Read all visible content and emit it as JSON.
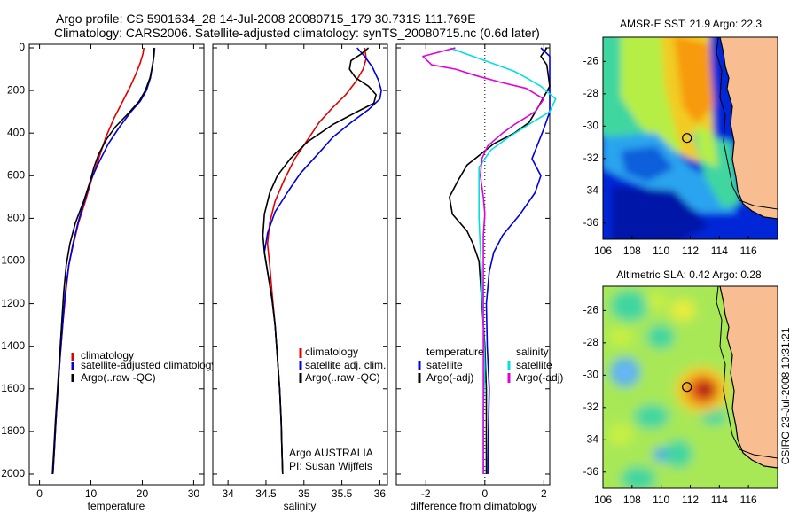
{
  "header": {
    "line1": "Argo profile: CS 5901634_28 14-Jul-2008 20080715_179 30.731S 111.769E",
    "line2": "Climatology: CARS2006. Satellite-adjusted climatology: synTS_20080715.nc (0.6d later)"
  },
  "chart_data": [
    {
      "type": "line",
      "xlabel": "temperature",
      "ylabel": "",
      "xlim": [
        -2,
        32
      ],
      "ylim": [
        2050,
        0
      ],
      "y_reversed": true,
      "xticks": [
        "0",
        "10",
        "20",
        "30"
      ],
      "yticks": [
        "0",
        "200",
        "400",
        "600",
        "800",
        "1000",
        "1200",
        "1400",
        "1600",
        "1800",
        "2000"
      ],
      "legend_labels": [
        "climatology",
        "satellite-adjusted climatology",
        "Argo(..raw -QC)"
      ],
      "series": [
        {
          "name": "climatology",
          "color": "#e00000",
          "points": [
            [
              20.3,
              0
            ],
            [
              20.1,
              30
            ],
            [
              19.6,
              70
            ],
            [
              18.8,
              120
            ],
            [
              17.7,
              180
            ],
            [
              16.2,
              250
            ],
            [
              14.5,
              330
            ],
            [
              12.9,
              420
            ],
            [
              11.5,
              520
            ],
            [
              10.1,
              620
            ],
            [
              8.9,
              720
            ],
            [
              7.6,
              820
            ],
            [
              6.6,
              920
            ],
            [
              5.7,
              1020
            ],
            [
              5.1,
              1150
            ],
            [
              4.5,
              1300
            ],
            [
              4.0,
              1450
            ],
            [
              3.6,
              1600
            ],
            [
              3.2,
              1750
            ],
            [
              2.9,
              1880
            ],
            [
              2.6,
              2000
            ]
          ]
        },
        {
          "name": "satellite-adjusted climatology",
          "color": "#0000e0",
          "points": [
            [
              22.4,
              0
            ],
            [
              22.3,
              30
            ],
            [
              22.0,
              80
            ],
            [
              21.6,
              140
            ],
            [
              20.8,
              200
            ],
            [
              19.6,
              250
            ],
            [
              17.8,
              300
            ],
            [
              15.6,
              370
            ],
            [
              13.4,
              450
            ],
            [
              11.5,
              540
            ],
            [
              10.0,
              620
            ],
            [
              8.7,
              720
            ],
            [
              7.5,
              820
            ],
            [
              6.5,
              920
            ],
            [
              5.7,
              1020
            ],
            [
              5.0,
              1150
            ],
            [
              4.5,
              1300
            ],
            [
              4.0,
              1450
            ],
            [
              3.6,
              1600
            ],
            [
              3.2,
              1750
            ],
            [
              2.9,
              1880
            ],
            [
              2.6,
              2000
            ]
          ]
        },
        {
          "name": "Argo(..raw -QC)",
          "color": "#000000",
          "points": [
            [
              22.2,
              0
            ],
            [
              22.3,
              30
            ],
            [
              22.0,
              80
            ],
            [
              21.5,
              140
            ],
            [
              20.6,
              200
            ],
            [
              19.4,
              250
            ],
            [
              17.2,
              310
            ],
            [
              14.8,
              370
            ],
            [
              13.0,
              430
            ],
            [
              11.5,
              500
            ],
            [
              10.6,
              560
            ],
            [
              9.8,
              630
            ],
            [
              8.6,
              720
            ],
            [
              7.0,
              820
            ],
            [
              5.9,
              920
            ],
            [
              5.2,
              1020
            ],
            [
              4.7,
              1150
            ],
            [
              4.3,
              1300
            ],
            [
              3.9,
              1450
            ],
            [
              3.5,
              1600
            ],
            [
              3.1,
              1750
            ],
            [
              2.8,
              1880
            ],
            [
              2.5,
              2000
            ]
          ]
        }
      ]
    },
    {
      "type": "line",
      "xlabel": "salinity",
      "ylabel": "",
      "xlim": [
        33.8,
        36.1
      ],
      "ylim": [
        2050,
        0
      ],
      "y_reversed": true,
      "xticks": [
        "34",
        "34.5",
        "35",
        "35.5",
        "36"
      ],
      "legend_labels": [
        "climatology",
        "satellite adj. clim.",
        "Argo(..raw -QC)"
      ],
      "annotations": [
        "Argo AUSTRALIA",
        "PI: Susan Wijffels"
      ],
      "series": [
        {
          "name": "climatology",
          "color": "#e00000",
          "points": [
            [
              35.8,
              0
            ],
            [
              35.82,
              50
            ],
            [
              35.78,
              100
            ],
            [
              35.68,
              160
            ],
            [
              35.55,
              220
            ],
            [
              35.38,
              280
            ],
            [
              35.2,
              350
            ],
            [
              35.05,
              430
            ],
            [
              34.88,
              520
            ],
            [
              34.74,
              620
            ],
            [
              34.62,
              720
            ],
            [
              34.55,
              820
            ],
            [
              34.52,
              920
            ],
            [
              34.55,
              1020
            ],
            [
              34.58,
              1150
            ],
            [
              34.62,
              1300
            ],
            [
              34.65,
              1450
            ],
            [
              34.68,
              1600
            ],
            [
              34.7,
              1750
            ],
            [
              34.71,
              1880
            ],
            [
              34.72,
              2000
            ]
          ]
        },
        {
          "name": "satellite adj. clim.",
          "color": "#0000e0",
          "points": [
            [
              35.7,
              0
            ],
            [
              35.8,
              40
            ],
            [
              35.9,
              90
            ],
            [
              35.98,
              150
            ],
            [
              36.02,
              200
            ],
            [
              36.0,
              240
            ],
            [
              35.85,
              290
            ],
            [
              35.62,
              350
            ],
            [
              35.38,
              420
            ],
            [
              35.18,
              500
            ],
            [
              34.95,
              590
            ],
            [
              34.78,
              680
            ],
            [
              34.62,
              770
            ],
            [
              34.52,
              870
            ],
            [
              34.48,
              960
            ],
            [
              34.52,
              1050
            ],
            [
              34.58,
              1180
            ],
            [
              34.62,
              1300
            ],
            [
              34.65,
              1450
            ],
            [
              34.68,
              1600
            ],
            [
              34.7,
              1750
            ],
            [
              34.71,
              1880
            ],
            [
              34.72,
              2000
            ]
          ]
        },
        {
          "name": "Argo(..raw -QC)",
          "color": "#000000",
          "points": [
            [
              35.85,
              0
            ],
            [
              35.75,
              30
            ],
            [
              35.62,
              60
            ],
            [
              35.6,
              100
            ],
            [
              35.68,
              140
            ],
            [
              35.85,
              180
            ],
            [
              35.95,
              220
            ],
            [
              35.92,
              260
            ],
            [
              35.7,
              300
            ],
            [
              35.38,
              360
            ],
            [
              35.05,
              440
            ],
            [
              34.82,
              520
            ],
            [
              34.65,
              600
            ],
            [
              34.55,
              680
            ],
            [
              34.48,
              780
            ],
            [
              34.46,
              880
            ],
            [
              34.48,
              960
            ],
            [
              34.52,
              1050
            ],
            [
              34.58,
              1180
            ],
            [
              34.62,
              1300
            ],
            [
              34.65,
              1450
            ],
            [
              34.68,
              1600
            ],
            [
              34.7,
              1750
            ],
            [
              34.71,
              1880
            ],
            [
              34.72,
              2000
            ]
          ]
        }
      ]
    },
    {
      "type": "line",
      "xlabel": "difference from climatology",
      "ylabel": "",
      "xlim": [
        -3.0,
        2.2
      ],
      "ylim": [
        2050,
        0
      ],
      "y_reversed": true,
      "xticks": [
        "-2",
        "0",
        "2"
      ],
      "zero_line": "dotted",
      "legend_labels": [
        "temperature",
        "satellite",
        "Argo(-adj)",
        "salinity",
        "satellite",
        "Argo(-adj)"
      ],
      "series": [
        {
          "name": "satellite",
          "color": "#0000e0",
          "points": [
            [
              1.9,
              0
            ],
            [
              2.2,
              40
            ],
            [
              2.2,
              300
            ],
            [
              2.0,
              380
            ],
            [
              1.8,
              450
            ],
            [
              1.6,
              520
            ],
            [
              1.9,
              600
            ],
            [
              1.7,
              680
            ],
            [
              1.2,
              780
            ],
            [
              0.6,
              880
            ],
            [
              0.3,
              960
            ],
            [
              0.15,
              1050
            ],
            [
              0.05,
              1200
            ],
            [
              0.08,
              1400
            ],
            [
              0.15,
              1600
            ],
            [
              0.12,
              1800
            ],
            [
              0.1,
              2000
            ]
          ]
        },
        {
          "name": "Argo(-adj)",
          "color": "#000000",
          "points": [
            [
              2.1,
              0
            ],
            [
              1.9,
              40
            ],
            [
              2.1,
              80
            ],
            [
              2.2,
              180
            ],
            [
              1.8,
              280
            ],
            [
              1.5,
              350
            ],
            [
              1.0,
              400
            ],
            [
              0.3,
              450
            ],
            [
              -0.6,
              550
            ],
            [
              -0.9,
              620
            ],
            [
              -1.2,
              700
            ],
            [
              -1.1,
              780
            ],
            [
              -0.6,
              860
            ],
            [
              -0.4,
              920
            ],
            [
              -0.2,
              1000
            ],
            [
              -0.1,
              1200
            ],
            [
              0.0,
              1400
            ],
            [
              0.05,
              1600
            ],
            [
              0.05,
              1800
            ],
            [
              0.05,
              2000
            ]
          ]
        },
        {
          "name": "satellite",
          "color": "#00e0e0",
          "points": [
            [
              -1.2,
              0
            ],
            [
              -0.6,
              30
            ],
            [
              0.0,
              60
            ],
            [
              0.6,
              90
            ],
            [
              1.0,
              110
            ],
            [
              1.4,
              140
            ],
            [
              1.9,
              180
            ],
            [
              2.4,
              240
            ],
            [
              2.2,
              300
            ],
            [
              1.6,
              350
            ],
            [
              0.8,
              420
            ],
            [
              0.2,
              480
            ],
            [
              -0.2,
              560
            ],
            [
              -0.2,
              680
            ],
            [
              -0.2,
              800
            ],
            [
              -0.15,
              950
            ],
            [
              -0.1,
              1100
            ],
            [
              -0.05,
              1300
            ],
            [
              0.0,
              1500
            ],
            [
              -0.05,
              1700
            ],
            [
              -0.05,
              1900
            ],
            [
              -0.05,
              2000
            ]
          ]
        },
        {
          "name": "Argo(-adj)",
          "color": "#e000e0",
          "points": [
            [
              -1.0,
              0
            ],
            [
              -2.1,
              40
            ],
            [
              -1.8,
              80
            ],
            [
              -1.0,
              100
            ],
            [
              -0.3,
              130
            ],
            [
              0.5,
              160
            ],
            [
              1.4,
              190
            ],
            [
              2.0,
              240
            ],
            [
              1.7,
              300
            ],
            [
              1.0,
              360
            ],
            [
              0.6,
              400
            ],
            [
              0.1,
              460
            ],
            [
              -0.1,
              520
            ],
            [
              -0.15,
              600
            ],
            [
              -0.05,
              700
            ],
            [
              0.0,
              780
            ],
            [
              -0.05,
              880
            ],
            [
              -0.05,
              1000
            ],
            [
              -0.05,
              1200
            ],
            [
              -0.05,
              1400
            ],
            [
              -0.05,
              1600
            ],
            [
              -0.05,
              1800
            ],
            [
              -0.05,
              2000
            ]
          ]
        }
      ]
    },
    {
      "type": "heatmap",
      "title": "AMSR-E SST: 21.9 Argo: 22.3",
      "xlim": [
        106,
        118
      ],
      "ylim": [
        -37,
        -24.5
      ],
      "xticks": [
        "106",
        "108",
        "110",
        "112",
        "114",
        "116"
      ],
      "yticks": [
        "-26",
        "-28",
        "-30",
        "-32",
        "-34",
        "-36"
      ],
      "float_position": [
        111.769,
        -30.731
      ],
      "land_color": "#f8bd90"
    },
    {
      "type": "heatmap",
      "title": "Altimetric SLA: 0.42 Argo: 0.28",
      "xlim": [
        106,
        118
      ],
      "ylim": [
        -37,
        -24.5
      ],
      "xticks": [
        "106",
        "108",
        "110",
        "112",
        "114",
        "116"
      ],
      "yticks": [
        "-26",
        "-28",
        "-30",
        "-32",
        "-34",
        "-36"
      ],
      "float_position": [
        111.769,
        -30.731
      ],
      "land_color": "#f8bd90"
    }
  ],
  "side_label": "CSIRO  23-Jul-2008 10:31:21"
}
